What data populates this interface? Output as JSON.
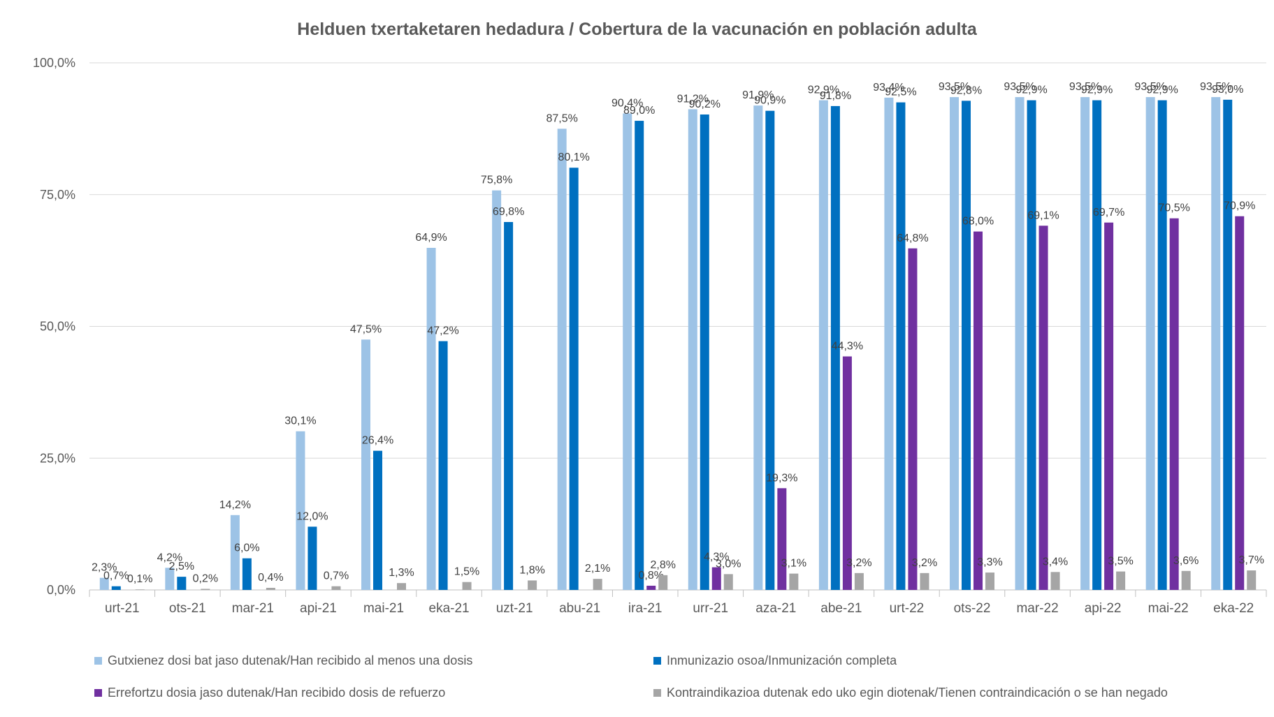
{
  "chart_data": {
    "type": "bar",
    "title": "Helduen txertaketaren hedadura / Cobertura de la vacunación en población adulta",
    "xlabel": "",
    "ylabel": "",
    "ylim": [
      0,
      100
    ],
    "y_ticks": [
      "0,0%",
      "25,0%",
      "50,0%",
      "75,0%",
      "100,0%"
    ],
    "y_tick_values": [
      0,
      25,
      50,
      75,
      100
    ],
    "grid": true,
    "legend_position": "bottom",
    "categories": [
      "urt-21",
      "ots-21",
      "mar-21",
      "api-21",
      "mai-21",
      "eka-21",
      "uzt-21",
      "abu-21",
      "ira-21",
      "urr-21",
      "aza-21",
      "abe-21",
      "urt-22",
      "ots-22",
      "mar-22",
      "api-22",
      "mai-22",
      "eka-22"
    ],
    "series": [
      {
        "name": "Gutxienez dosi bat jaso dutenak/Han recibido al menos una dosis",
        "color": "#9DC3E6",
        "values": [
          2.3,
          4.2,
          14.2,
          30.1,
          47.5,
          64.9,
          75.8,
          87.5,
          90.4,
          91.2,
          91.9,
          92.9,
          93.4,
          93.5,
          93.5,
          93.5,
          93.5,
          93.5
        ],
        "labels": [
          "2,3%",
          "4,2%",
          "14,2%",
          "30,1%",
          "47,5%",
          "64,9%",
          "75,8%",
          "87,5%",
          "90,4%",
          "91,2%",
          "91,9%",
          "92,9%",
          "93,4%",
          "93,5%",
          "93,5%",
          "93,5%",
          "93,5%",
          "93,5%"
        ]
      },
      {
        "name": "Inmunizazio osoa/Inmunización completa",
        "color": "#0070C0",
        "values": [
          0.7,
          2.5,
          6.0,
          12.0,
          26.4,
          47.2,
          69.8,
          80.1,
          89.0,
          90.2,
          90.9,
          91.8,
          92.5,
          92.8,
          92.9,
          92.9,
          92.9,
          93.0
        ],
        "labels": [
          "0,7%",
          "2,5%",
          "6,0%",
          "12,0%",
          "26,4%",
          "47,2%",
          "69,8%",
          "80,1%",
          "89,0%",
          "90,2%",
          "90,9%",
          "91,8%",
          "92,5%",
          "92,8%",
          "92,9%",
          "92,9%",
          "92,9%",
          "93,0%"
        ]
      },
      {
        "name": "Errefortzu dosia jaso dutenak/Han recibido dosis de refuerzo",
        "color": "#7030A0",
        "values": [
          null,
          null,
          null,
          null,
          null,
          null,
          null,
          null,
          0.8,
          4.3,
          19.3,
          44.3,
          64.8,
          68.0,
          69.1,
          69.7,
          70.5,
          70.9
        ],
        "labels": [
          null,
          null,
          null,
          null,
          null,
          null,
          null,
          null,
          "0,8%",
          "4,3%",
          "19,3%",
          "44,3%",
          "64,8%",
          "68,0%",
          "69,1%",
          "69,7%",
          "70,5%",
          "70,9%"
        ]
      },
      {
        "name": "Kontraindikazioa dutenak edo uko egin diotenak/Tienen contraindicación o se han negado",
        "color": "#A5A5A5",
        "values": [
          0.1,
          0.2,
          0.4,
          0.7,
          1.3,
          1.5,
          1.8,
          2.1,
          2.8,
          3.0,
          3.1,
          3.2,
          3.2,
          3.3,
          3.4,
          3.5,
          3.6,
          3.7
        ],
        "labels": [
          "0,1%",
          "0,2%",
          "0,4%",
          "0,7%",
          "1,3%",
          "1,5%",
          "1,8%",
          "2,1%",
          "2,8%",
          "3,0%",
          "3,1%",
          "3,2%",
          "3,2%",
          "3,3%",
          "3,4%",
          "3,5%",
          "3,6%",
          "3,7%"
        ]
      }
    ]
  }
}
